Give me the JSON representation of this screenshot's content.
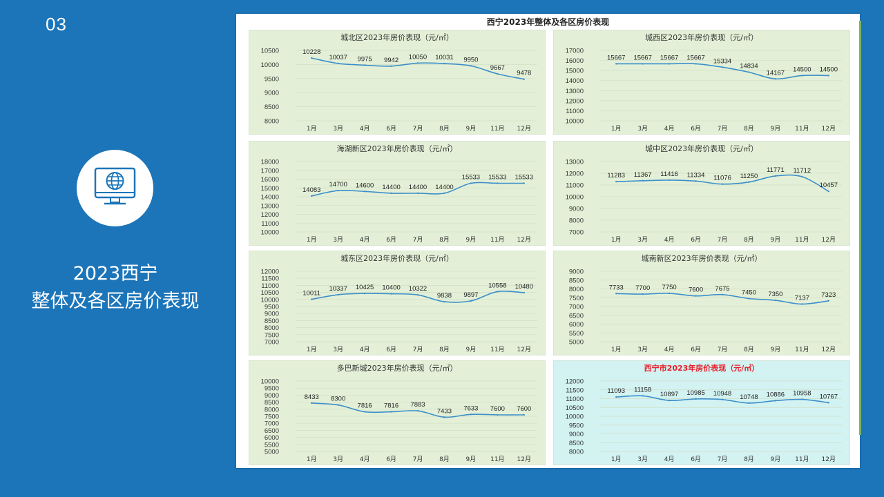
{
  "slide": {
    "number": "03",
    "title_line1": "2023西宁",
    "title_line2": "整体及各区房价表现",
    "icon": "globe-monitor-icon"
  },
  "screenshot": {
    "title": "西宁2023年整体及各区房价表现"
  },
  "colors": {
    "background": "#1c75b8",
    "panel_bg": "#e3f0d7",
    "highlight_panel_bg": "#d3f2f2",
    "line": "#3d8fc9",
    "highlight_title": "#e8202a"
  },
  "chart_data": [
    {
      "type": "line",
      "title": "城北区2023年房价表现（元/㎡）",
      "categories": [
        "1月",
        "3月",
        "4月",
        "6月",
        "7月",
        "8月",
        "9月",
        "11月",
        "12月"
      ],
      "values": [
        10228,
        10037,
        9975,
        9942,
        10050,
        10031,
        9950,
        9667,
        9478
      ],
      "yticks": [
        8000,
        8500,
        9000,
        9500,
        10000,
        10500
      ],
      "ylim": [
        8000,
        10500
      ],
      "highlight": false
    },
    {
      "type": "line",
      "title": "城西区2023年房价表现（元/㎡）",
      "categories": [
        "1月",
        "3月",
        "4月",
        "6月",
        "7月",
        "8月",
        "9月",
        "11月",
        "12月"
      ],
      "values": [
        15667,
        15667,
        15667,
        15667,
        15334,
        14834,
        14167,
        14500,
        14500
      ],
      "yticks": [
        10000,
        11000,
        12000,
        13000,
        14000,
        15000,
        16000,
        17000
      ],
      "ylim": [
        10000,
        17000
      ],
      "highlight": false
    },
    {
      "type": "line",
      "title": "海湖新区2023年房价表现（元/㎡）",
      "categories": [
        "1月",
        "3月",
        "4月",
        "6月",
        "7月",
        "8月",
        "9月",
        "11月",
        "12月"
      ],
      "values": [
        14083,
        14700,
        14600,
        14400,
        14400,
        14400,
        15533,
        15533,
        15533
      ],
      "yticks": [
        10000,
        11000,
        12000,
        13000,
        14000,
        15000,
        16000,
        17000,
        18000
      ],
      "ylim": [
        10000,
        18000
      ],
      "highlight": false
    },
    {
      "type": "line",
      "title": "城中区2023年房价表现（元/㎡）",
      "categories": [
        "1月",
        "3月",
        "4月",
        "6月",
        "7月",
        "8月",
        "9月",
        "11月",
        "12月"
      ],
      "values": [
        11283,
        11367,
        11416,
        11334,
        11076,
        11250,
        11771,
        11712,
        10457
      ],
      "yticks": [
        7000,
        8000,
        9000,
        10000,
        11000,
        12000,
        13000
      ],
      "ylim": [
        7000,
        13000
      ],
      "highlight": false
    },
    {
      "type": "line",
      "title": "城东区2023年房价表现（元/㎡）",
      "categories": [
        "1月",
        "3月",
        "4月",
        "6月",
        "7月",
        "8月",
        "9月",
        "11月",
        "12月"
      ],
      "values": [
        10011,
        10337,
        10425,
        10400,
        10322,
        9838,
        9897,
        10558,
        10480
      ],
      "yticks": [
        7000,
        7500,
        8000,
        8500,
        9000,
        9500,
        10000,
        10500,
        11000,
        11500,
        12000
      ],
      "ylim": [
        7000,
        12000
      ],
      "highlight": false
    },
    {
      "type": "line",
      "title": "城南新区2023年房价表现（元/㎡）",
      "categories": [
        "1月",
        "3月",
        "4月",
        "6月",
        "7月",
        "8月",
        "9月",
        "11月",
        "12月"
      ],
      "values": [
        7733,
        7700,
        7750,
        7600,
        7675,
        7450,
        7350,
        7137,
        7323
      ],
      "yticks": [
        5000,
        5500,
        6000,
        6500,
        7000,
        7500,
        8000,
        8500,
        9000
      ],
      "ylim": [
        5000,
        9000
      ],
      "highlight": false
    },
    {
      "type": "line",
      "title": "多巴新城2023年房价表现（元/㎡）",
      "categories": [
        "1月",
        "3月",
        "4月",
        "6月",
        "7月",
        "8月",
        "9月",
        "11月",
        "12月"
      ],
      "values": [
        8433,
        8300,
        7816,
        7816,
        7883,
        7433,
        7633,
        7600,
        7600
      ],
      "yticks": [
        5000,
        5500,
        6000,
        6500,
        7000,
        7500,
        8000,
        8500,
        9000,
        9500,
        10000
      ],
      "ylim": [
        5000,
        10000
      ],
      "highlight": false
    },
    {
      "type": "line",
      "title": "西宁市2023年房价表现（元/㎡）",
      "categories": [
        "1月",
        "3月",
        "4月",
        "6月",
        "7月",
        "8月",
        "9月",
        "11月",
        "12月"
      ],
      "values": [
        11093,
        11158,
        10897,
        10985,
        10948,
        10748,
        10886,
        10958,
        10767
      ],
      "yticks": [
        8000,
        8500,
        9000,
        9500,
        10000,
        10500,
        11000,
        11500,
        12000
      ],
      "ylim": [
        8000,
        12000
      ],
      "highlight": true
    }
  ]
}
